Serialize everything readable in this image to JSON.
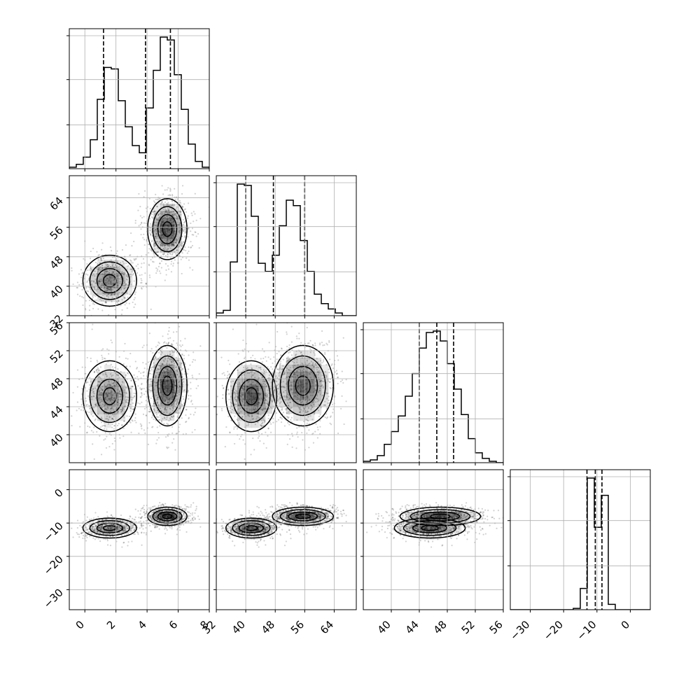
{
  "chart_data": {
    "type": "corner",
    "title": "",
    "grid": true,
    "parameters": [
      {
        "range": [
          -1,
          8
        ],
        "ticks": [
          0,
          2,
          4,
          6,
          8
        ],
        "tick_labels": [
          "0",
          "2",
          "4",
          "6",
          "8"
        ],
        "quantiles": [
          1.2,
          3.9,
          5.5
        ]
      },
      {
        "range": [
          32,
          70
        ],
        "ticks": [
          32,
          40,
          48,
          56,
          64
        ],
        "tick_labels": [
          "32",
          "40",
          "48",
          "56",
          "64"
        ],
        "quantiles": [
          40.0,
          47.5,
          56.0
        ]
      },
      {
        "range": [
          36,
          56
        ],
        "ticks": [
          40,
          44,
          48,
          52,
          56
        ],
        "tick_labels": [
          "40",
          "44",
          "48",
          "52",
          "56"
        ],
        "quantiles": [
          44.0,
          46.5,
          48.9
        ]
      },
      {
        "range": [
          -36,
          6
        ],
        "ticks": [
          -30,
          -20,
          -10,
          0
        ],
        "tick_labels": [
          "−30",
          "−20",
          "−10",
          "0"
        ],
        "quantiles": [
          -13.0,
          -10.5,
          -8.5
        ]
      }
    ],
    "diagonal_ytick_fractions": [
      0.33,
      0.67,
      1.0
    ],
    "histograms": [
      {
        "edges": [
          -1.0,
          -0.55,
          -0.1,
          0.35,
          0.8,
          1.25,
          1.7,
          2.15,
          2.6,
          3.05,
          3.5,
          3.95,
          4.4,
          4.85,
          5.3,
          5.75,
          6.2,
          6.65,
          7.1,
          7.55,
          8.0
        ],
        "counts": [
          1,
          3,
          8,
          20,
          48,
          70,
          69,
          47,
          29,
          16,
          11,
          42,
          68,
          91,
          89,
          65,
          41,
          17,
          5,
          1
        ]
      },
      {
        "edges": [
          32,
          33.9,
          35.8,
          37.7,
          39.6,
          41.5,
          43.4,
          45.3,
          47.2,
          49.1,
          51.0,
          52.9,
          54.8,
          56.7,
          58.6,
          60.5,
          62.4,
          64.3,
          66.2,
          68.1,
          70.0
        ],
        "counts": [
          2,
          4,
          40,
          98,
          97,
          74,
          39,
          33,
          45,
          67,
          86,
          82,
          56,
          33,
          16,
          9,
          5,
          2,
          0,
          0
        ]
      },
      {
        "edges": [
          36,
          37,
          38,
          39,
          40,
          41,
          42,
          43,
          44,
          45,
          46,
          47,
          48,
          49,
          50,
          51,
          52,
          53,
          54,
          55,
          56
        ],
        "counts": [
          1,
          2,
          5,
          13,
          22,
          33,
          47,
          63,
          81,
          92,
          93,
          86,
          70,
          52,
          34,
          17,
          7,
          3,
          1,
          0
        ]
      },
      {
        "edges": [
          -36,
          -33.9,
          -31.8,
          -29.7,
          -27.6,
          -25.5,
          -23.4,
          -21.3,
          -19.2,
          -17.1,
          -15.0,
          -12.9,
          -10.8,
          -8.7,
          -6.6,
          -4.5,
          -2.4,
          -0.3,
          1.8,
          3.9,
          6.0
        ],
        "counts": [
          0,
          0,
          0,
          0,
          0,
          0,
          0,
          0,
          0,
          1,
          16,
          99,
          62,
          86,
          4,
          0,
          0,
          0,
          0,
          0
        ]
      }
    ],
    "clusters": [
      {
        "mean": [
          1.6,
          41.5,
          45.5,
          -11.5
        ],
        "sd": [
          0.75,
          3.0,
          2.2,
          1.3
        ],
        "weight": 0.45
      },
      {
        "mean": [
          5.3,
          55.5,
          47.0,
          -8.0
        ],
        "sd": [
          0.55,
          3.6,
          2.5,
          1.2
        ],
        "weight": 0.55
      }
    ]
  }
}
